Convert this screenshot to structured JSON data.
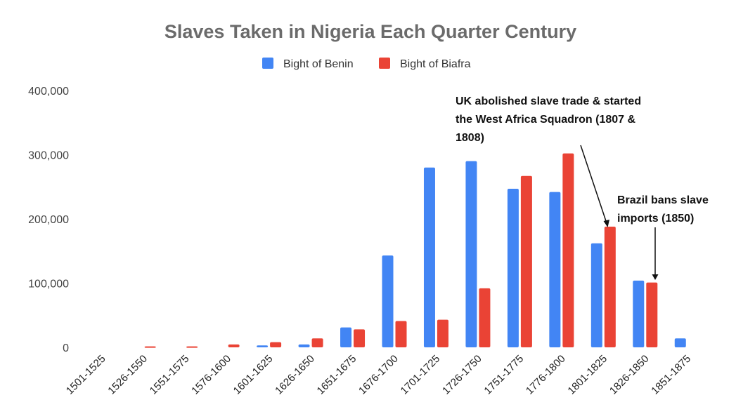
{
  "chart_data": {
    "type": "bar",
    "title": "Slaves Taken in Nigeria Each Quarter Century",
    "xlabel": "",
    "ylabel": "",
    "ylim": [
      0,
      400000
    ],
    "yticks": [
      {
        "value": 0,
        "label": "0"
      },
      {
        "value": 100000,
        "label": "100,000"
      },
      {
        "value": 200000,
        "label": "200,000"
      },
      {
        "value": 300000,
        "label": "300,000"
      },
      {
        "value": 400000,
        "label": "400,000"
      }
    ],
    "grid": false,
    "legend_position": "top",
    "categories": [
      "1501-1525",
      "1526-1550",
      "1551-1575",
      "1576-1600",
      "1601-1625",
      "1626-1650",
      "1651-1675",
      "1676-1700",
      "1701-1725",
      "1726-1750",
      "1751-1775",
      "1776-1800",
      "1801-1825",
      "1826-1850",
      "1851-1875"
    ],
    "series": [
      {
        "name": "Bight of Benin",
        "color": "#4285f4",
        "values": [
          0,
          0,
          0,
          0,
          3000,
          4500,
          31000,
          143000,
          280000,
          290000,
          247000,
          242000,
          162000,
          104000,
          14000
        ]
      },
      {
        "name": "Bight of Biafra",
        "color": "#ea4335",
        "values": [
          0,
          1500,
          1500,
          4500,
          8000,
          14000,
          28000,
          41000,
          43000,
          92000,
          267000,
          302000,
          188000,
          101000,
          0
        ]
      }
    ],
    "annotations": [
      {
        "name": "uk-abolition",
        "lines": [
          "UK abolished slave trade & started",
          "the West Africa Squadron (1807 &",
          "1808)"
        ],
        "category": "1801-1825",
        "series": "Bight of Biafra"
      },
      {
        "name": "brazil-ban",
        "lines": [
          "Brazil bans slave",
          "imports (1850)"
        ],
        "category": "1826-1850",
        "series": "Bight of Biafra"
      }
    ]
  }
}
